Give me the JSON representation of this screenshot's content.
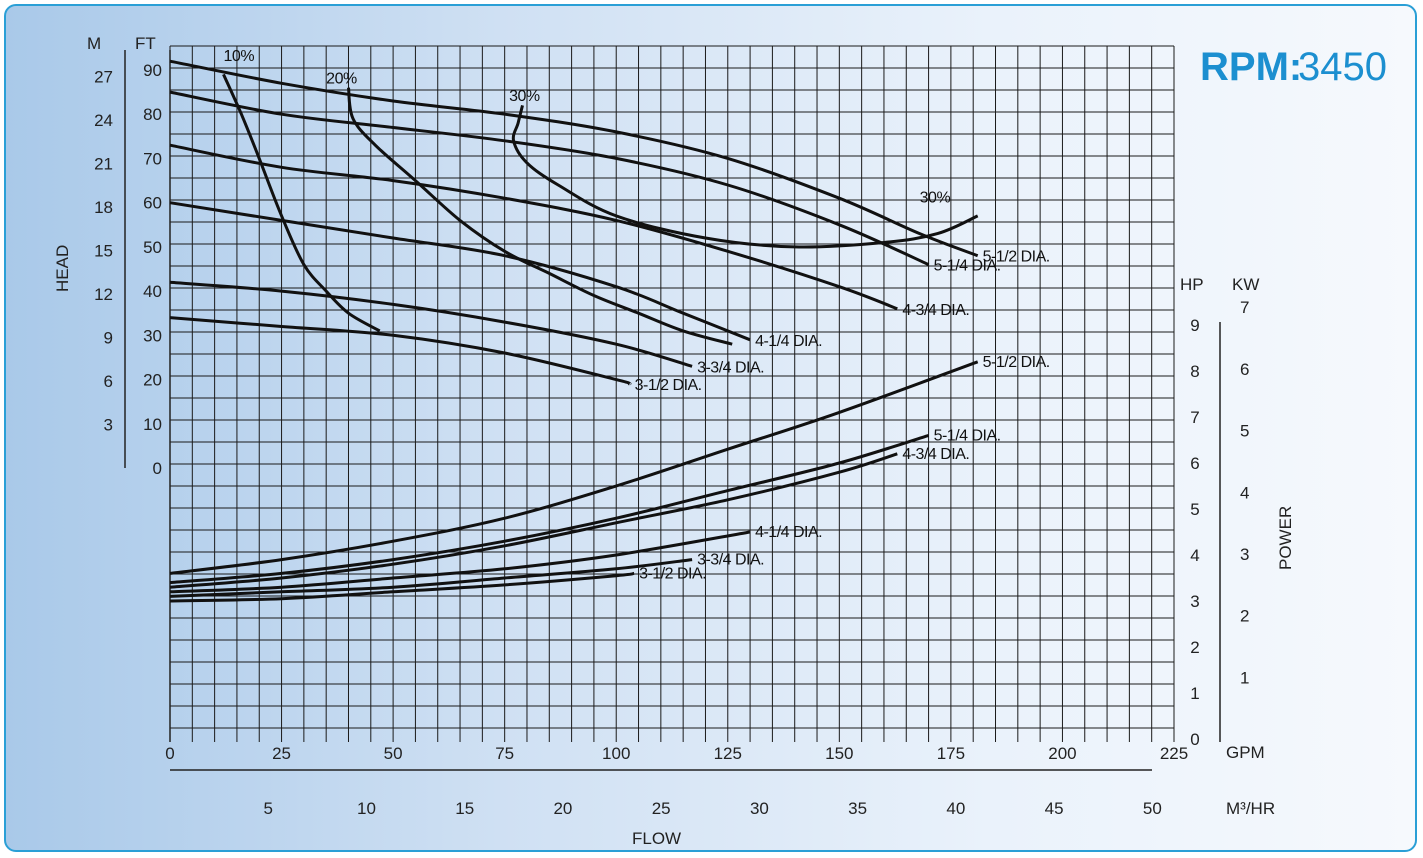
{
  "chart_data": {
    "type": "line",
    "rpm_label": "RPM:",
    "rpm_value": "3450",
    "xlabel": "FLOW",
    "ylabel_head": "HEAD",
    "ylabel_power": "POWER",
    "units": {
      "gpm": "GPM",
      "m3hr": "M³/HR",
      "head_m": "M",
      "head_ft": "FT",
      "power_hp": "HP",
      "power_kw": "KW"
    },
    "x_gpm_ticks": [
      "0",
      "25",
      "50",
      "75",
      "100",
      "125",
      "150",
      "175",
      "200",
      "225"
    ],
    "x_m3hr_ticks": [
      "5",
      "10",
      "15",
      "20",
      "25",
      "30",
      "35",
      "40",
      "45",
      "50"
    ],
    "head_ft_ticks": [
      "0",
      "10",
      "20",
      "30",
      "40",
      "50",
      "60",
      "70",
      "80",
      "90"
    ],
    "head_m_ticks": [
      "3",
      "6",
      "9",
      "12",
      "15",
      "18",
      "21",
      "24",
      "27"
    ],
    "hp_ticks": [
      "0",
      "1",
      "2",
      "3",
      "4",
      "5",
      "6",
      "7",
      "8",
      "9"
    ],
    "kw_ticks": [
      "1",
      "2",
      "3",
      "4",
      "5",
      "6",
      "7"
    ],
    "xlim_gpm": [
      0,
      225
    ],
    "ylim_head_ft": [
      0,
      90
    ],
    "ylim_hp": [
      0,
      9
    ],
    "head_curves": [
      {
        "name": "5-1/2 DIA.",
        "x": [
          0,
          25,
          50,
          75,
          100,
          125,
          150,
          168,
          181
        ],
        "y": [
          92,
          87,
          83,
          80,
          76,
          70,
          61,
          53,
          48
        ]
      },
      {
        "name": "5-1/4 DIA.",
        "x": [
          0,
          25,
          50,
          75,
          100,
          125,
          150,
          170
        ],
        "y": [
          85,
          80,
          77,
          74,
          70,
          64,
          55,
          46
        ]
      },
      {
        "name": "4-3/4 DIA.",
        "x": [
          0,
          25,
          50,
          75,
          100,
          125,
          150,
          163
        ],
        "y": [
          73,
          68,
          65,
          61,
          56,
          49,
          41,
          36
        ]
      },
      {
        "name": "4-1/4 DIA.",
        "x": [
          0,
          25,
          50,
          75,
          100,
          115,
          130
        ],
        "y": [
          60,
          56,
          52,
          48,
          41,
          35,
          29
        ]
      },
      {
        "name": "3-3/4 DIA.",
        "x": [
          0,
          25,
          50,
          75,
          100,
          117
        ],
        "y": [
          42,
          40,
          37,
          33,
          28,
          23
        ]
      },
      {
        "name": "3-1/2 DIA.",
        "x": [
          0,
          25,
          50,
          75,
          100,
          103
        ],
        "y": [
          34,
          32,
          30,
          26,
          20,
          19
        ]
      }
    ],
    "efficiency_curves": [
      {
        "name": "10%",
        "x": [
          12,
          16,
          20,
          25,
          30,
          35,
          40,
          47
        ],
        "y": [
          89,
          80,
          70,
          57,
          46,
          40,
          35,
          31
        ]
      },
      {
        "name": "20%",
        "x": [
          40,
          41,
          46,
          55,
          65,
          75,
          85,
          95,
          105,
          115,
          126
        ],
        "y": [
          86,
          79,
          73,
          65,
          56,
          49,
          44,
          39,
          35,
          31,
          28
        ]
      },
      {
        "name": "30%",
        "x": [
          79,
          78,
          77,
          80,
          87,
          100,
          120,
          140,
          160,
          172,
          181
        ],
        "y": [
          82,
          78,
          74,
          69,
          64,
          57,
          52,
          50,
          51,
          53,
          57
        ]
      }
    ],
    "efficiency_labels": [
      "10%",
      "20%",
      "30%",
      "30%"
    ],
    "power_curves": [
      {
        "name": "5-1/2 DIA.",
        "x": [
          0,
          25,
          50,
          75,
          100,
          125,
          150,
          181
        ],
        "y": [
          3.6,
          3.9,
          4.3,
          4.8,
          5.5,
          6.3,
          7.1,
          8.2
        ]
      },
      {
        "name": "5-1/4 DIA.",
        "x": [
          0,
          25,
          50,
          75,
          100,
          125,
          150,
          170
        ],
        "y": [
          3.4,
          3.6,
          3.9,
          4.3,
          4.8,
          5.4,
          6.0,
          6.6
        ]
      },
      {
        "name": "4-3/4 DIA.",
        "x": [
          0,
          25,
          50,
          75,
          100,
          125,
          150,
          163
        ],
        "y": [
          3.3,
          3.5,
          3.8,
          4.2,
          4.7,
          5.2,
          5.8,
          6.2
        ]
      },
      {
        "name": "4-1/4 DIA.",
        "x": [
          0,
          25,
          50,
          75,
          100,
          130
        ],
        "y": [
          3.2,
          3.3,
          3.5,
          3.7,
          4.0,
          4.5
        ]
      },
      {
        "name": "3-3/4 DIA.",
        "x": [
          0,
          25,
          50,
          75,
          100,
          117
        ],
        "y": [
          3.1,
          3.2,
          3.3,
          3.5,
          3.7,
          3.9
        ]
      },
      {
        "name": "3-1/2 DIA.",
        "x": [
          0,
          25,
          50,
          75,
          100,
          104
        ],
        "y": [
          3.0,
          3.05,
          3.2,
          3.35,
          3.55,
          3.6
        ]
      }
    ],
    "grid": true
  }
}
